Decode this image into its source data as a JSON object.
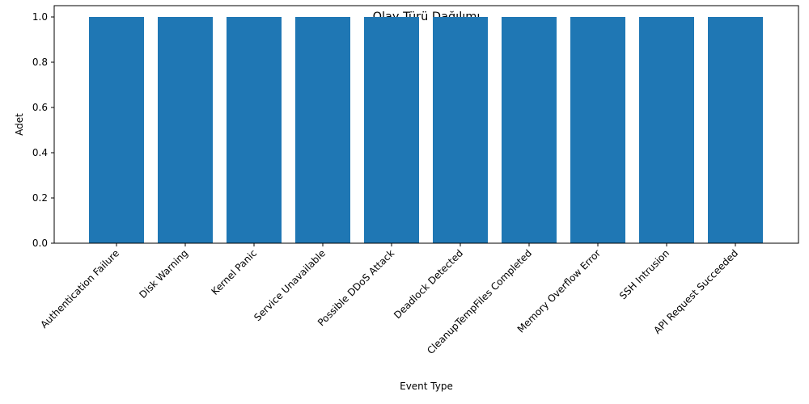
{
  "chart_data": {
    "type": "bar",
    "title": "Olay Türü Dağılımı",
    "xlabel": "Event Type",
    "ylabel": "Adet",
    "categories": [
      "Authentication Failure",
      "Disk Warning",
      "Kernel Panic",
      "Service Unavailable",
      "Possible DDoS Attack",
      "Deadlock Detected",
      "CleanupTempFiles Completed",
      "Memory Overflow Error",
      "SSH Intrusion",
      "API Request Succeeded"
    ],
    "values": [
      1,
      1,
      1,
      1,
      1,
      1,
      1,
      1,
      1,
      1
    ],
    "ylim": [
      0,
      1.05
    ],
    "yticks": [
      0.0,
      0.2,
      0.4,
      0.6,
      0.8,
      1.0
    ],
    "ytick_labels": [
      "0.0",
      "0.2",
      "0.4",
      "0.6",
      "0.8",
      "1.0"
    ],
    "grid": false,
    "legend": "none",
    "bar_color": "#1f77b4"
  }
}
